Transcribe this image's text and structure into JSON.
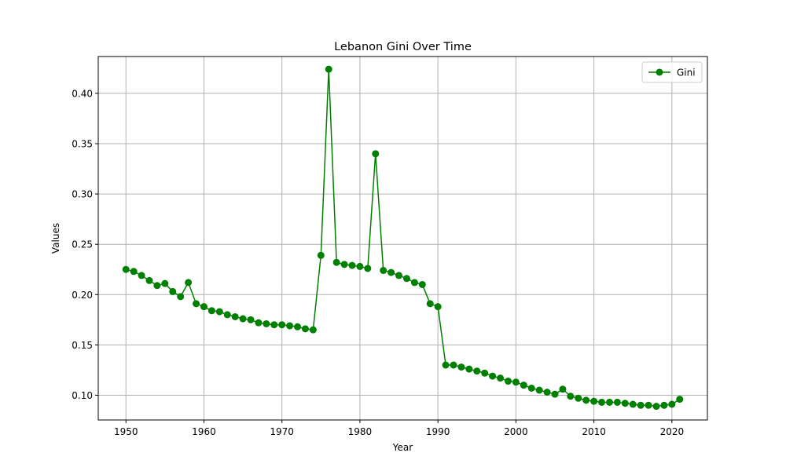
{
  "chart_data": {
    "type": "line",
    "title": "Lebanon Gini Over Time",
    "xlabel": "Year",
    "ylabel": "Values",
    "xlim": [
      1946.45,
      2024.55
    ],
    "ylim": [
      0.0754,
      0.4366
    ],
    "xticks": [
      1950,
      1960,
      1970,
      1980,
      1990,
      2000,
      2010,
      2020
    ],
    "yticks": [
      0.1,
      0.15,
      0.2,
      0.25,
      0.3,
      0.35,
      0.4
    ],
    "ytick_labels": [
      "0.10",
      "0.15",
      "0.20",
      "0.25",
      "0.30",
      "0.35",
      "0.40"
    ],
    "grid": true,
    "legend_position": "top-right",
    "colors": {
      "series": "#008000",
      "grid": "#b0b0b0",
      "axes": "#000000"
    },
    "series": [
      {
        "name": "Gini",
        "marker": "circle",
        "x": [
          1950,
          1951,
          1952,
          1953,
          1954,
          1955,
          1956,
          1957,
          1958,
          1959,
          1960,
          1961,
          1962,
          1963,
          1964,
          1965,
          1966,
          1967,
          1968,
          1969,
          1970,
          1971,
          1972,
          1973,
          1974,
          1975,
          1976,
          1977,
          1978,
          1979,
          1980,
          1981,
          1982,
          1983,
          1984,
          1985,
          1986,
          1987,
          1988,
          1989,
          1990,
          1991,
          1992,
          1993,
          1994,
          1995,
          1996,
          1997,
          1998,
          1999,
          2000,
          2001,
          2002,
          2003,
          2004,
          2005,
          2006,
          2007,
          2008,
          2009,
          2010,
          2011,
          2012,
          2013,
          2014,
          2015,
          2016,
          2017,
          2018,
          2019,
          2020,
          2021
        ],
        "values": [
          0.225,
          0.223,
          0.219,
          0.214,
          0.209,
          0.211,
          0.203,
          0.198,
          0.212,
          0.191,
          0.188,
          0.184,
          0.183,
          0.18,
          0.178,
          0.176,
          0.175,
          0.172,
          0.171,
          0.17,
          0.17,
          0.169,
          0.168,
          0.166,
          0.165,
          0.239,
          0.424,
          0.232,
          0.23,
          0.229,
          0.228,
          0.226,
          0.34,
          0.224,
          0.222,
          0.219,
          0.216,
          0.212,
          0.21,
          0.191,
          0.188,
          0.13,
          0.13,
          0.128,
          0.126,
          0.124,
          0.122,
          0.119,
          0.117,
          0.114,
          0.113,
          0.11,
          0.107,
          0.105,
          0.103,
          0.101,
          0.106,
          0.099,
          0.097,
          0.095,
          0.094,
          0.093,
          0.093,
          0.093,
          0.092,
          0.091,
          0.09,
          0.09,
          0.089,
          0.09,
          0.091,
          0.096
        ]
      }
    ]
  }
}
